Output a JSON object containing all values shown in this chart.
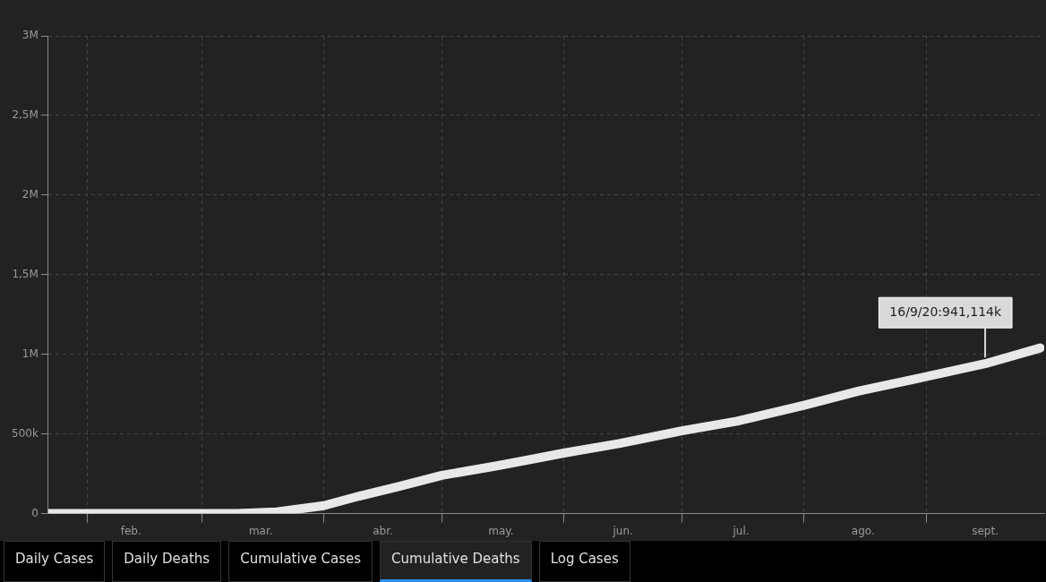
{
  "chart_data": {
    "type": "line",
    "x": [
      "--01-22",
      "--02-01",
      "--02-15",
      "--03-01",
      "--03-10",
      "--03-20",
      "--04-01",
      "--04-10",
      "--04-20",
      "--05-01",
      "--05-15",
      "--06-01",
      "--06-15",
      "--07-01",
      "--07-15",
      "--08-01",
      "--08-15",
      "--09-01",
      "--09-16",
      "--09-30"
    ],
    "series": [
      {
        "color": "#e8e8e8",
        "values": [
          0,
          0,
          0,
          0,
          0,
          10000,
          50000,
          110000,
          170000,
          240000,
          300000,
          380000,
          440000,
          520000,
          580000,
          680000,
          770000,
          860000,
          941114,
          1040000
        ]
      }
    ],
    "xlim": [
      "--01-22",
      "--10-01"
    ],
    "xticks": [
      {
        "value": "--02-01",
        "label": null
      },
      {
        "value": "--02-12",
        "label": "feb."
      },
      {
        "value": "--03-01",
        "label": null
      },
      {
        "value": "--03-16",
        "label": "mar."
      },
      {
        "value": "--04-01",
        "label": null
      },
      {
        "value": "--04-16",
        "label": "abr."
      },
      {
        "value": "--05-01",
        "label": null
      },
      {
        "value": "--05-16",
        "label": "may."
      },
      {
        "value": "--06-01",
        "label": null
      },
      {
        "value": "--06-16",
        "label": "jun."
      },
      {
        "value": "--07-01",
        "label": null
      },
      {
        "value": "--07-16",
        "label": "jul."
      },
      {
        "value": "--08-01",
        "label": null
      },
      {
        "value": "--08-16",
        "label": "ago."
      },
      {
        "value": "--09-01",
        "label": null
      },
      {
        "value": "--09-16",
        "label": "sept."
      }
    ],
    "ylim": [
      0,
      3000000
    ],
    "yticks": [
      {
        "value": 0,
        "label": "0"
      },
      {
        "value": 500000,
        "label": "500k"
      },
      {
        "value": 1000000,
        "label": "1M"
      },
      {
        "value": 1500000,
        "label": "1,5M"
      },
      {
        "value": 2000000,
        "label": "2M"
      },
      {
        "value": 2500000,
        "label": "2,5M"
      },
      {
        "value": 3000000,
        "label": "3M"
      }
    ],
    "grid": true,
    "legend": false,
    "marker": "none",
    "line_style": "solid",
    "annotations": [
      {
        "text": "16/9/20:941,114k",
        "x": "--09-16",
        "y": 941114
      },
      "Daily Cases",
      "Daily Deaths",
      "Cumulative Cases",
      "Cumulative Deaths",
      "Log Cases"
    ]
  }
}
